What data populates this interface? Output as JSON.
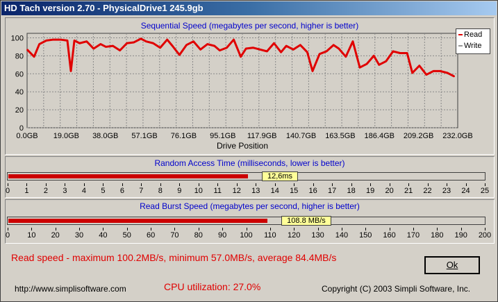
{
  "window": {
    "title": "HD Tach version 2.70 - PhysicalDrive1 245.9gb"
  },
  "sequential": {
    "title": "Sequential Speed (megabytes per second, higher is better)",
    "xlabel": "Drive Position",
    "legend": {
      "read": "Read",
      "write": "Write"
    }
  },
  "random_access": {
    "title": "Random Access Time (milliseconds, lower is better)",
    "value_label": "12,6ms",
    "ticks": [
      "0",
      "1",
      "2",
      "3",
      "4",
      "5",
      "6",
      "7",
      "8",
      "9",
      "10",
      "11",
      "12",
      "13",
      "14",
      "15",
      "16",
      "17",
      "18",
      "19",
      "20",
      "21",
      "22",
      "23",
      "24",
      "25"
    ]
  },
  "burst": {
    "title": "Read Burst Speed (megabytes per second, higher is better)",
    "value_label": "108.8 MB/s",
    "ticks": [
      "0",
      "10",
      "20",
      "30",
      "40",
      "50",
      "60",
      "70",
      "80",
      "90",
      "100",
      "110",
      "120",
      "130",
      "140",
      "150",
      "160",
      "170",
      "180",
      "190",
      "200"
    ]
  },
  "summary": {
    "read_speed": "Read speed - maximum 100.2MB/s, minimum 57.0MB/s, average 84.4MB/s"
  },
  "footer": {
    "url": "http://www.simplisoftware.com",
    "cpu": "CPU utilization: 27.0%",
    "copyright": "Copyright (C) 2003 Simpli Software, Inc."
  },
  "ok_button": {
    "label": "Ok"
  },
  "colors": {
    "read": "#e00000",
    "write": "#cccccc",
    "bar": "#cc0000"
  },
  "chart_data": [
    {
      "type": "line",
      "title": "Sequential Speed (megabytes per second, higher is better)",
      "xlabel": "Drive Position",
      "ylabel": "",
      "xticks": [
        "0.0GB",
        "19.0GB",
        "38.0GB",
        "57.1GB",
        "76.1GB",
        "95.1GB",
        "117.9GB",
        "140.7GB",
        "163.5GB",
        "186.4GB",
        "209.2GB",
        "232.0GB"
      ],
      "xlim": [
        0,
        245.9
      ],
      "ylim": [
        0,
        105
      ],
      "yticks": [
        0,
        20,
        40,
        60,
        80,
        100
      ],
      "grid": true,
      "legend_position": "right",
      "series": [
        {
          "name": "Read",
          "x": [
            0,
            4,
            7,
            11,
            15,
            19,
            23,
            25,
            27,
            30,
            34,
            38,
            42,
            45,
            49,
            53,
            57,
            61,
            65,
            68,
            72,
            76,
            80,
            83,
            87,
            91,
            95,
            99,
            103,
            107,
            110,
            114,
            118,
            122,
            125,
            129,
            133,
            137,
            141,
            145,
            148,
            152,
            156,
            160,
            163,
            167,
            171,
            175,
            178,
            182,
            186,
            190,
            194,
            198,
            201,
            205,
            209,
            213,
            217,
            220,
            224,
            228,
            232,
            236,
            240,
            244
          ],
          "y": [
            87,
            79,
            93,
            97,
            98,
            98,
            97,
            63,
            97,
            94,
            96,
            88,
            93,
            90,
            91,
            86,
            94,
            95,
            99,
            96,
            94,
            89,
            98,
            91,
            81,
            92,
            96,
            87,
            93,
            91,
            86,
            89,
            98,
            79,
            88,
            89,
            87,
            85,
            94,
            84,
            91,
            87,
            92,
            84,
            63,
            82,
            85,
            92,
            88,
            79,
            96,
            67,
            71,
            80,
            70,
            74,
            85,
            83,
            83,
            61,
            69,
            59,
            63,
            63,
            61,
            57
          ]
        },
        {
          "name": "Write",
          "x": [],
          "y": []
        }
      ]
    },
    {
      "type": "bar",
      "title": "Random Access Time (milliseconds, lower is better)",
      "xlim": [
        0,
        25
      ],
      "values": [
        12.6
      ],
      "label": "12,6ms"
    },
    {
      "type": "bar",
      "title": "Read Burst Speed (megabytes per second, higher is better)",
      "xlim": [
        0,
        200
      ],
      "values": [
        108.8
      ],
      "label": "108.8 MB/s"
    }
  ]
}
